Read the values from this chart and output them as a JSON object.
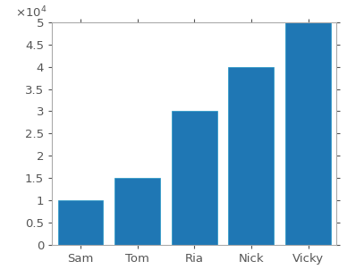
{
  "categories": [
    "Sam",
    "Tom",
    "Ria",
    "Nick",
    "Vicky"
  ],
  "values": [
    10000,
    15000,
    30000,
    40000,
    50000
  ],
  "bar_color": "#1f77b4",
  "bar_edge_color": "#2196c4",
  "ylim": [
    0,
    50000
  ],
  "yticks": [
    0,
    5000,
    10000,
    15000,
    20000,
    25000,
    30000,
    35000,
    40000,
    45000,
    50000
  ],
  "ytick_labels": [
    "0",
    "0.5",
    "1",
    "1.5",
    "2",
    "2.5",
    "3",
    "3.5",
    "4",
    "4.5",
    "5"
  ],
  "background_color": "#ffffff",
  "tick_fontsize": 9.5,
  "bar_width": 0.8,
  "spine_color": "#aaaaaa",
  "figsize": [
    3.88,
    3.11
  ],
  "dpi": 100
}
